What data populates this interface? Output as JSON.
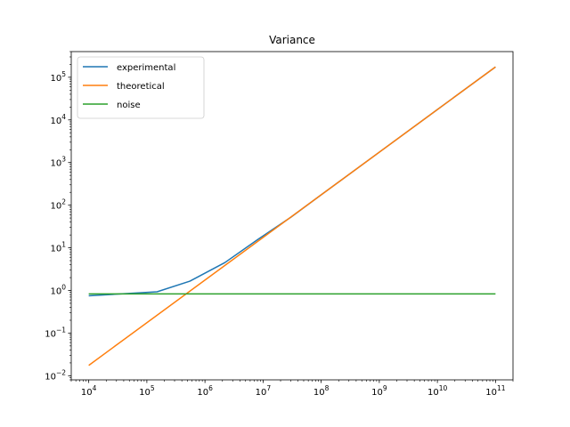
{
  "chart_data": {
    "type": "line",
    "title": "Variance",
    "xlabel": "",
    "ylabel": "",
    "xscale": "log",
    "yscale": "log",
    "xlim": [
      5000.0,
      200000000000.0
    ],
    "ylim": [
      0.008,
      400000
    ],
    "grid": false,
    "legend_position": "top-left",
    "x_ticks": [
      {
        "value": 10000,
        "base": "10",
        "exp": "4"
      },
      {
        "value": 100000,
        "base": "10",
        "exp": "5"
      },
      {
        "value": 1000000,
        "base": "10",
        "exp": "6"
      },
      {
        "value": 10000000,
        "base": "10",
        "exp": "7"
      },
      {
        "value": 100000000,
        "base": "10",
        "exp": "8"
      },
      {
        "value": 1000000000,
        "base": "10",
        "exp": "9"
      },
      {
        "value": 10000000000,
        "base": "10",
        "exp": "10"
      },
      {
        "value": 100000000000,
        "base": "10",
        "exp": "11"
      }
    ],
    "y_ticks": [
      {
        "value": 0.01,
        "base": "10",
        "exp": "−2"
      },
      {
        "value": 0.1,
        "base": "10",
        "exp": "−1"
      },
      {
        "value": 1,
        "base": "10",
        "exp": "0"
      },
      {
        "value": 10,
        "base": "10",
        "exp": "1"
      },
      {
        "value": 100,
        "base": "10",
        "exp": "2"
      },
      {
        "value": 1000,
        "base": "10",
        "exp": "3"
      },
      {
        "value": 10000,
        "base": "10",
        "exp": "4"
      },
      {
        "value": 100000,
        "base": "10",
        "exp": "5"
      }
    ],
    "series": [
      {
        "name": "experimental",
        "color": "#1f77b4",
        "x": [
          10000,
          150000,
          550000,
          2200000,
          8000000,
          30000000,
          100000000,
          1000000000,
          10000000000,
          100000000000
        ],
        "y": [
          0.75,
          0.93,
          1.65,
          4.5,
          15.5,
          52,
          175,
          1750,
          17500,
          175000
        ]
      },
      {
        "name": "theoretical",
        "color": "#ff7f0e",
        "x": [
          10000,
          100000000000
        ],
        "y": [
          0.0175,
          175000
        ]
      },
      {
        "name": "noise",
        "color": "#2ca02c",
        "x": [
          10000,
          100000000000
        ],
        "y": [
          0.83,
          0.83
        ]
      }
    ]
  }
}
